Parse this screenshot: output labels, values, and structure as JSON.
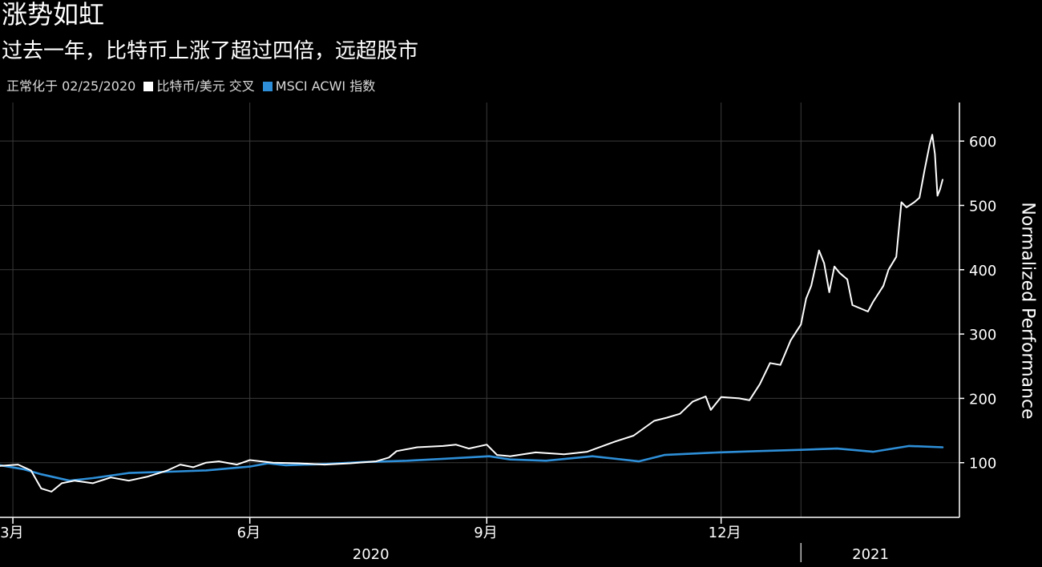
{
  "header": {
    "title": "涨势如虹",
    "subtitle": "过去一年，比特币上涨了超过四倍，远超股市",
    "legend_prefix": "正常化于 02/25/2020"
  },
  "colors": {
    "background": "#000000",
    "grid": "#3a3a3a",
    "btc": "#ffffff",
    "msci": "#2e8fd8"
  },
  "chart_data": {
    "type": "line",
    "title": "涨势如虹",
    "subtitle": "过去一年，比特币上涨了超过四倍，远超股市",
    "ylabel": "Normalized Performance",
    "ylim": [
      15,
      660
    ],
    "yticks": [
      100,
      200,
      300,
      400,
      500,
      600
    ],
    "xlim": [
      "2020-02-25",
      "2021-02-25"
    ],
    "x_month_ticks": [
      {
        "date": "2020-03-01",
        "label": "3月"
      },
      {
        "date": "2020-06-01",
        "label": "6月"
      },
      {
        "date": "2020-09-01",
        "label": "9月"
      },
      {
        "date": "2020-12-01",
        "label": "12月"
      }
    ],
    "x_year_labels": [
      {
        "date": "2020-07-18",
        "label": "2020"
      },
      {
        "date": "2021-01-28",
        "label": "2021"
      }
    ],
    "year_divider": "2021-01-01",
    "grid": true,
    "legend_placement": "top-left",
    "series": [
      {
        "name": "比特币/美元 交叉",
        "color": "#ffffff",
        "points": [
          [
            "2020-02-25",
            95
          ],
          [
            "2020-03-03",
            97
          ],
          [
            "2020-03-08",
            88
          ],
          [
            "2020-03-12",
            60
          ],
          [
            "2020-03-16",
            55
          ],
          [
            "2020-03-20",
            68
          ],
          [
            "2020-03-25",
            72
          ],
          [
            "2020-04-01",
            68
          ],
          [
            "2020-04-08",
            77
          ],
          [
            "2020-04-15",
            72
          ],
          [
            "2020-04-22",
            78
          ],
          [
            "2020-04-30",
            88
          ],
          [
            "2020-05-05",
            97
          ],
          [
            "2020-05-10",
            93
          ],
          [
            "2020-05-15",
            100
          ],
          [
            "2020-05-20",
            102
          ],
          [
            "2020-05-27",
            97
          ],
          [
            "2020-06-01",
            104
          ],
          [
            "2020-06-10",
            100
          ],
          [
            "2020-06-20",
            99
          ],
          [
            "2020-06-30",
            97
          ],
          [
            "2020-07-10",
            99
          ],
          [
            "2020-07-20",
            102
          ],
          [
            "2020-07-25",
            108
          ],
          [
            "2020-07-28",
            118
          ],
          [
            "2020-08-05",
            124
          ],
          [
            "2020-08-15",
            126
          ],
          [
            "2020-08-20",
            128
          ],
          [
            "2020-08-25",
            122
          ],
          [
            "2020-09-01",
            128
          ],
          [
            "2020-09-05",
            112
          ],
          [
            "2020-09-10",
            110
          ],
          [
            "2020-09-20",
            116
          ],
          [
            "2020-10-01",
            113
          ],
          [
            "2020-10-10",
            117
          ],
          [
            "2020-10-21",
            133
          ],
          [
            "2020-10-28",
            142
          ],
          [
            "2020-11-05",
            165
          ],
          [
            "2020-11-10",
            170
          ],
          [
            "2020-11-15",
            176
          ],
          [
            "2020-11-20",
            195
          ],
          [
            "2020-11-25",
            203
          ],
          [
            "2020-11-27",
            182
          ],
          [
            "2020-12-01",
            202
          ],
          [
            "2020-12-08",
            200
          ],
          [
            "2020-12-12",
            197
          ],
          [
            "2020-12-16",
            222
          ],
          [
            "2020-12-20",
            255
          ],
          [
            "2020-12-24",
            252
          ],
          [
            "2020-12-28",
            290
          ],
          [
            "2021-01-01",
            315
          ],
          [
            "2021-01-03",
            355
          ],
          [
            "2021-01-05",
            375
          ],
          [
            "2021-01-08",
            430
          ],
          [
            "2021-01-10",
            410
          ],
          [
            "2021-01-12",
            365
          ],
          [
            "2021-01-14",
            405
          ],
          [
            "2021-01-16",
            395
          ],
          [
            "2021-01-19",
            385
          ],
          [
            "2021-01-21",
            345
          ],
          [
            "2021-01-24",
            340
          ],
          [
            "2021-01-27",
            335
          ],
          [
            "2021-01-29",
            350
          ],
          [
            "2021-02-02",
            375
          ],
          [
            "2021-02-04",
            400
          ],
          [
            "2021-02-07",
            420
          ],
          [
            "2021-02-09",
            505
          ],
          [
            "2021-02-11",
            497
          ],
          [
            "2021-02-14",
            505
          ],
          [
            "2021-02-16",
            512
          ],
          [
            "2021-02-18",
            555
          ],
          [
            "2021-02-20",
            595
          ],
          [
            "2021-02-21",
            610
          ],
          [
            "2021-02-22",
            580
          ],
          [
            "2021-02-23",
            515
          ],
          [
            "2021-02-24",
            525
          ],
          [
            "2021-02-25",
            540
          ]
        ]
      },
      {
        "name": "MSCI ACWI 指数",
        "color": "#2e8fd8",
        "points": [
          [
            "2020-02-25",
            96
          ],
          [
            "2020-03-05",
            90
          ],
          [
            "2020-03-12",
            82
          ],
          [
            "2020-03-23",
            72
          ],
          [
            "2020-04-01",
            76
          ],
          [
            "2020-04-15",
            84
          ],
          [
            "2020-05-01",
            86
          ],
          [
            "2020-05-15",
            88
          ],
          [
            "2020-06-01",
            94
          ],
          [
            "2020-06-08",
            99
          ],
          [
            "2020-06-15",
            96
          ],
          [
            "2020-07-01",
            98
          ],
          [
            "2020-07-15",
            101
          ],
          [
            "2020-08-01",
            103
          ],
          [
            "2020-08-15",
            106
          ],
          [
            "2020-09-02",
            110
          ],
          [
            "2020-09-10",
            105
          ],
          [
            "2020-09-24",
            103
          ],
          [
            "2020-10-12",
            110
          ],
          [
            "2020-10-30",
            102
          ],
          [
            "2020-11-09",
            112
          ],
          [
            "2020-11-30",
            116
          ],
          [
            "2020-12-15",
            118
          ],
          [
            "2021-01-01",
            120
          ],
          [
            "2021-01-15",
            122
          ],
          [
            "2021-01-29",
            117
          ],
          [
            "2021-02-12",
            126
          ],
          [
            "2021-02-25",
            124
          ]
        ]
      }
    ]
  }
}
